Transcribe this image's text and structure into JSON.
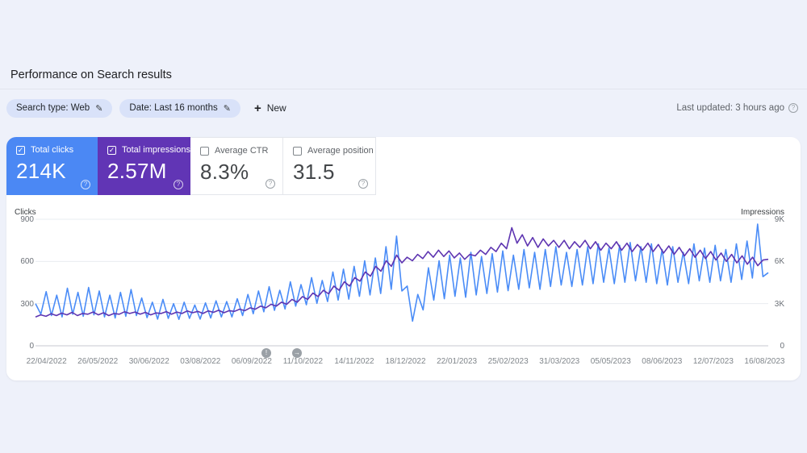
{
  "page": {
    "title": "Performance on Search results"
  },
  "filters": {
    "chips": [
      {
        "label": "Search type: Web"
      },
      {
        "label": "Date: Last 16 months"
      }
    ],
    "new_label": "New",
    "last_updated": "Last updated: 3 hours ago"
  },
  "metrics": [
    {
      "label": "Total clicks",
      "value": "214K",
      "checked": true,
      "color": "#4b88f4"
    },
    {
      "label": "Total impressions",
      "value": "2.57M",
      "checked": true,
      "color": "#6135b5"
    },
    {
      "label": "Average CTR",
      "value": "8.3%",
      "checked": false
    },
    {
      "label": "Average position",
      "value": "31.5",
      "checked": false
    }
  ],
  "annotations": [
    {
      "glyph": "!"
    },
    {
      "glyph": "→"
    }
  ],
  "chart_data": {
    "type": "line",
    "grid": true,
    "left_axis": {
      "label": "Clicks",
      "max": 900,
      "ticks": [
        "900",
        "600",
        "300",
        "0"
      ]
    },
    "right_axis": {
      "label": "Impressions",
      "max": 9000,
      "ticks": [
        "9K",
        "6K",
        "3K",
        "0"
      ]
    },
    "x_ticks": [
      "22/04/2022",
      "26/05/2022",
      "30/06/2022",
      "03/08/2022",
      "06/09/2022",
      "11/10/2022",
      "14/11/2022",
      "18/12/2022",
      "22/01/2023",
      "25/02/2023",
      "31/03/2023",
      "05/05/2023",
      "08/06/2023",
      "12/07/2023",
      "16/08/2023"
    ],
    "series": [
      {
        "name": "Clicks",
        "axis": "left",
        "color": "#4a8cf7",
        "values": [
          300,
          225,
          385,
          215,
          360,
          205,
          410,
          225,
          380,
          210,
          415,
          220,
          390,
          205,
          360,
          198,
          380,
          210,
          400,
          215,
          340,
          200,
          310,
          190,
          330,
          195,
          300,
          188,
          310,
          195,
          290,
          190,
          305,
          198,
          320,
          205,
          315,
          205,
          335,
          215,
          365,
          228,
          390,
          242,
          420,
          252,
          395,
          262,
          455,
          282,
          435,
          292,
          485,
          302,
          465,
          315,
          525,
          325,
          545,
          332,
          565,
          352,
          605,
          362,
          625,
          372,
          705,
          402,
          780,
          390,
          425,
          175,
          365,
          255,
          555,
          325,
          605,
          335,
          645,
          352,
          625,
          345,
          665,
          362,
          635,
          372,
          655,
          382,
          675,
          392,
          645,
          402,
          685,
          412,
          665,
          402,
          685,
          422,
          705,
          432,
          665,
          422,
          685,
          432,
          705,
          442,
          725,
          452,
          695,
          442,
          715,
          452,
          735,
          462,
          705,
          452,
          725,
          442,
          685,
          432,
          705,
          452,
          665,
          442,
          725,
          462,
          695,
          452,
          715,
          462,
          685,
          452,
          725,
          472,
          745,
          482,
          865,
          492,
          520
        ]
      },
      {
        "name": "Impressions",
        "axis": "right",
        "color": "#5e35b1",
        "values": [
          2050,
          2200,
          2100,
          2280,
          2150,
          2320,
          2200,
          2380,
          2150,
          2300,
          2250,
          2400,
          2200,
          2350,
          2150,
          2300,
          2250,
          2420,
          2300,
          2400,
          2250,
          2380,
          2200,
          2340,
          2300,
          2430,
          2250,
          2400,
          2300,
          2480,
          2350,
          2450,
          2300,
          2480,
          2380,
          2530,
          2350,
          2500,
          2450,
          2600,
          2500,
          2700,
          2600,
          2820,
          2700,
          2950,
          2820,
          3100,
          2950,
          3300,
          3100,
          3500,
          3300,
          3750,
          3500,
          3950,
          3700,
          4250,
          3950,
          4550,
          4250,
          4850,
          4600,
          5250,
          4950,
          5650,
          5300,
          6050,
          5650,
          6450,
          5900,
          6300,
          6050,
          6500,
          6200,
          6700,
          6300,
          6800,
          6350,
          6750,
          6250,
          6600,
          6150,
          6500,
          6400,
          6800,
          6500,
          7000,
          6700,
          7300,
          6900,
          8400,
          7300,
          7900,
          7100,
          7700,
          7000,
          7600,
          7100,
          7500,
          7000,
          7500,
          6900,
          7400,
          7000,
          7500,
          6900,
          7400,
          6800,
          7300,
          6900,
          7400,
          6800,
          7300,
          6700,
          7200,
          6800,
          7300,
          6700,
          7200,
          6600,
          7100,
          6500,
          7000,
          6400,
          6900,
          6300,
          6800,
          6200,
          6700,
          6100,
          6600,
          6000,
          6500,
          5900,
          6400,
          5800,
          6300,
          5700,
          6100,
          6150
        ]
      }
    ]
  }
}
